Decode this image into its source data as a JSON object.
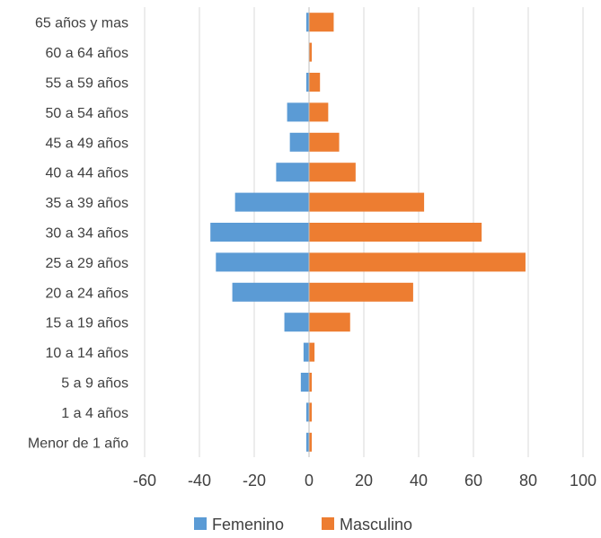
{
  "chart_data": {
    "type": "bar",
    "orientation": "horizontal",
    "title": "",
    "xlabel": "",
    "ylabel": "",
    "categories": [
      "Menor de 1 año",
      "1 a 4 años",
      "5 a 9 años",
      "10 a 14 años",
      "15 a 19 años",
      "20 a 24 años",
      "25 a 29 años",
      "30 a 34 años",
      "35 a 39 años",
      "40 a 44 años",
      "45 a 49 años",
      "50 a 54 años",
      "55 a 59 años",
      "60 a 64 años",
      "65 años y mas"
    ],
    "series": [
      {
        "name": "Femenino",
        "color": "#5b9bd5",
        "values": [
          -1,
          -1,
          -3,
          -2,
          -9,
          -28,
          -34,
          -36,
          -27,
          -12,
          -7,
          -8,
          -1,
          0,
          -1
        ]
      },
      {
        "name": "Masculino",
        "color": "#ed7d31",
        "values": [
          1,
          1,
          1,
          2,
          15,
          38,
          79,
          63,
          42,
          17,
          11,
          7,
          4,
          1,
          9
        ]
      }
    ],
    "xlim": [
      -60,
      100
    ],
    "xticks": [
      "-60",
      "-40",
      "-20",
      "0",
      "20",
      "40",
      "60",
      "80",
      "100"
    ],
    "grid": "vertical",
    "legend": "bottom"
  }
}
